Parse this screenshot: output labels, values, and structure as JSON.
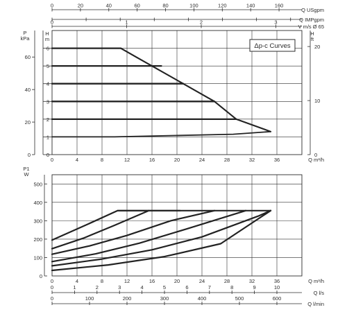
{
  "chart_data": [
    {
      "id": "head",
      "type": "line",
      "title": "",
      "legend": "Δp-c Curves",
      "legend_position": "top-right",
      "grid": true,
      "x": {
        "label": "Q m³/h",
        "range": [
          0,
          40
        ],
        "ticks": [
          0,
          4,
          8,
          12,
          16,
          20,
          24,
          28,
          32,
          36
        ],
        "tick_labels": [
          "0",
          "4",
          "8",
          "12",
          "16",
          "20",
          "24",
          "28",
          "32",
          "36"
        ]
      },
      "y_left_outer": {
        "label_top": "P",
        "label_unit": "kPa",
        "range_H": [
          0,
          7
        ],
        "ticks_H": [
          0,
          1.8349,
          3.6697,
          5.5046
        ],
        "tick_labels": [
          "0",
          "20",
          "40",
          "60"
        ]
      },
      "y_left_inner": {
        "label": "H m",
        "range": [
          0,
          7
        ],
        "ticks": [
          0,
          1,
          2,
          3,
          4,
          5,
          6
        ],
        "tick_labels": [
          "0",
          "1",
          "2",
          "3",
          "4",
          "5",
          "6"
        ]
      },
      "y_right": {
        "label": "H ft",
        "range_H": [
          0,
          7
        ],
        "ticks_H": [
          0,
          3.048,
          6.096
        ],
        "tick_labels": [
          "0",
          "10",
          "20"
        ]
      },
      "top_axes": [
        {
          "label": "Q USgpm",
          "range": [
            0,
            176.11
          ],
          "ticks": [
            0,
            20,
            40,
            60,
            80,
            100,
            120,
            140,
            160
          ],
          "tick_labels": [
            "0",
            "20",
            "40",
            "60",
            "80",
            "100",
            "120",
            "140",
            "160"
          ]
        },
        {
          "label": "Q IMPgpm",
          "range": [
            0,
            146.64
          ],
          "ticks": [
            0,
            20,
            40,
            60,
            80,
            100,
            120,
            140
          ],
          "tick_labels": [
            "",
            "",
            "",
            "",
            "",
            "",
            "",
            ""
          ]
        },
        {
          "label": "V m/s Ø 65",
          "range": [
            0,
            3.349
          ],
          "ticks": [
            0,
            1,
            2,
            3
          ],
          "tick_labels": [
            "0",
            "1",
            "2",
            "3"
          ]
        }
      ],
      "series": [
        {
          "x": [
            0,
            10,
            29,
            35
          ],
          "y": [
            1,
            1,
            1.15,
            1.3
          ],
          "width": 1.8
        },
        {
          "x": [
            0,
            29.5
          ],
          "y": [
            2,
            2
          ],
          "width": 2.3
        },
        {
          "x": [
            0,
            26
          ],
          "y": [
            3,
            3
          ],
          "width": 2.3
        },
        {
          "x": [
            0,
            21
          ],
          "y": [
            4,
            4
          ],
          "width": 2.3
        },
        {
          "x": [
            0,
            17.5
          ],
          "y": [
            5,
            5
          ],
          "width": 2.3
        },
        {
          "x": [
            0,
            11
          ],
          "y": [
            6,
            6
          ],
          "width": 2.3
        }
      ],
      "envelope": {
        "x": [
          11,
          13.5,
          21,
          26,
          29.5,
          35
        ],
        "y": [
          6,
          5.5,
          4,
          3,
          2,
          1.3
        ],
        "width": 2.1
      }
    },
    {
      "id": "power",
      "type": "line",
      "title": "",
      "grid": true,
      "x": {
        "label": "Q m³/h",
        "range": [
          0,
          40
        ],
        "ticks": [
          0,
          4,
          8,
          12,
          16,
          20,
          24,
          28,
          32,
          36
        ],
        "tick_labels": [
          "0",
          "4",
          "8",
          "12",
          "16",
          "20",
          "24",
          "28",
          "32",
          "36"
        ]
      },
      "y": {
        "label_top": "P1",
        "label_unit": "W",
        "range": [
          0,
          550
        ],
        "ticks": [
          0,
          100,
          200,
          300,
          400,
          500
        ],
        "tick_labels": [
          "0",
          "100",
          "200",
          "300",
          "400",
          "500"
        ]
      },
      "bottom_axes": [
        {
          "label": "Q l/s",
          "range": [
            0,
            11.111
          ],
          "ticks": [
            0,
            1,
            2,
            3,
            4,
            5,
            6,
            7,
            8,
            9,
            10
          ],
          "tick_labels": [
            "0",
            "1",
            "2",
            "3",
            "4",
            "5",
            "6",
            "7",
            "8",
            "9",
            "10"
          ]
        },
        {
          "label": "Q l/min",
          "range": [
            0,
            666.67
          ],
          "ticks": [
            0,
            100,
            200,
            300,
            400,
            500,
            600
          ],
          "tick_labels": [
            "0",
            "100",
            "200",
            "300",
            "400",
            "500",
            "600"
          ]
        }
      ],
      "series": [
        {
          "x": [
            0,
            5,
            10.5,
            15.5
          ],
          "y": [
            195,
            270,
            355,
            355
          ]
        },
        {
          "x": [
            0,
            5,
            10,
            15.5,
            20.5
          ],
          "y": [
            148,
            205,
            275,
            355,
            355
          ]
        },
        {
          "x": [
            0,
            6,
            12,
            19,
            26
          ],
          "y": [
            118,
            163,
            220,
            300,
            355
          ]
        },
        {
          "x": [
            0,
            7,
            14,
            21.5,
            31
          ],
          "y": [
            78,
            120,
            178,
            255,
            355
          ]
        },
        {
          "x": [
            0,
            8,
            16,
            24,
            33,
            35
          ],
          "y": [
            55,
            92,
            142,
            212,
            325,
            355
          ]
        },
        {
          "x": [
            0,
            9,
            18,
            27,
            35
          ],
          "y": [
            30,
            60,
            105,
            175,
            355
          ]
        },
        {
          "x": [
            10.5,
            35
          ],
          "y": [
            355,
            355
          ]
        }
      ]
    }
  ]
}
